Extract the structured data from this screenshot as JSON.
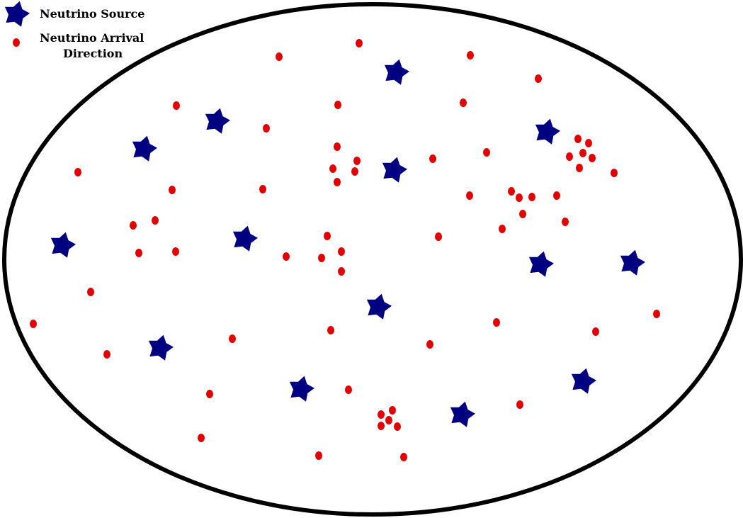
{
  "legend": {
    "source_label": "Neutrino Source",
    "arrival_label_line1": "Neutrino Arrival",
    "arrival_label_line2": "Direction"
  },
  "colors": {
    "source": "#000080",
    "arrival": "#e00000",
    "outline": "#000000",
    "background": "#ffffff"
  },
  "sources": [
    [
      559,
      102
    ],
    [
      306,
      171
    ],
    [
      772,
      186
    ],
    [
      203,
      210
    ],
    [
      556,
      240
    ],
    [
      88,
      346
    ],
    [
      345,
      337
    ],
    [
      763,
      373
    ],
    [
      892,
      371
    ],
    [
      534,
      433
    ],
    [
      226,
      491
    ],
    [
      425,
      549
    ],
    [
      823,
      538
    ],
    [
      652,
      585
    ]
  ],
  "arrivals": [
    [
      507,
      61
    ],
    [
      394,
      80
    ],
    [
      664,
      78
    ],
    [
      760,
      111
    ],
    [
      249,
      149
    ],
    [
      477,
      148
    ],
    [
      654,
      145
    ],
    [
      376,
      181
    ],
    [
      816,
      196
    ],
    [
      831,
      202
    ],
    [
      823,
      216
    ],
    [
      804,
      221
    ],
    [
      836,
      223
    ],
    [
      818,
      237
    ],
    [
      476,
      207
    ],
    [
      504,
      227
    ],
    [
      470,
      238
    ],
    [
      501,
      242
    ],
    [
      476,
      257
    ],
    [
      611,
      224
    ],
    [
      687,
      215
    ],
    [
      110,
      243
    ],
    [
      867,
      244
    ],
    [
      243,
      268
    ],
    [
      371,
      267
    ],
    [
      663,
      276
    ],
    [
      722,
      270
    ],
    [
      733,
      279
    ],
    [
      751,
      278
    ],
    [
      786,
      276
    ],
    [
      738,
      302
    ],
    [
      798,
      313
    ],
    [
      709,
      323
    ],
    [
      188,
      318
    ],
    [
      219,
      311
    ],
    [
      462,
      333
    ],
    [
      619,
      334
    ],
    [
      196,
      357
    ],
    [
      248,
      355
    ],
    [
      404,
      362
    ],
    [
      454,
      364
    ],
    [
      482,
      355
    ],
    [
      482,
      383
    ],
    [
      128,
      412
    ],
    [
      47,
      457
    ],
    [
      701,
      455
    ],
    [
      927,
      443
    ],
    [
      467,
      466
    ],
    [
      841,
      468
    ],
    [
      328,
      478
    ],
    [
      607,
      486
    ],
    [
      151,
      500
    ],
    [
      492,
      550
    ],
    [
      296,
      556
    ],
    [
      734,
      571
    ],
    [
      538,
      585
    ],
    [
      554,
      579
    ],
    [
      549,
      593
    ],
    [
      538,
      601
    ],
    [
      561,
      602
    ],
    [
      284,
      618
    ],
    [
      450,
      643
    ],
    [
      570,
      645
    ]
  ]
}
